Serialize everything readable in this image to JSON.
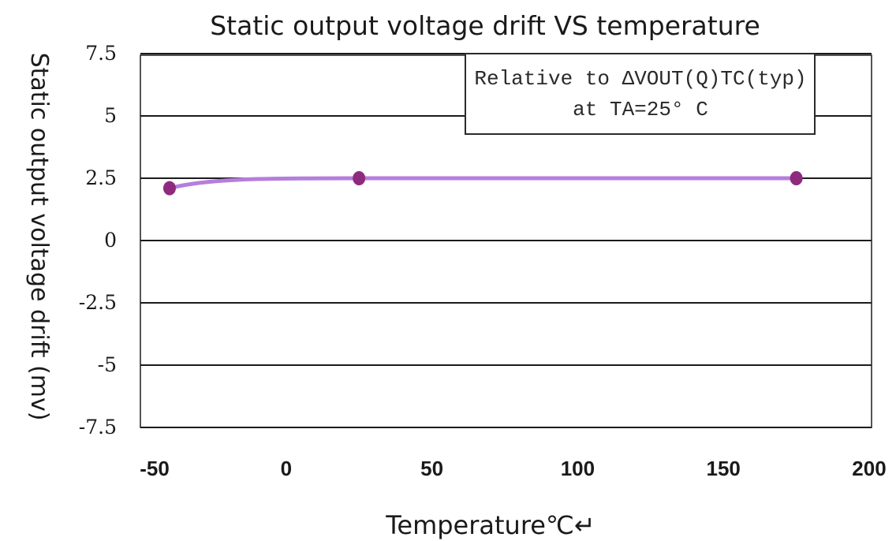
{
  "chart_data": {
    "type": "line",
    "title": "Static output voltage drift VS temperature",
    "xlabel": "Temperature℃↵",
    "ylabel": "Static output voltage drift (mv)",
    "xlim": [
      -50,
      200
    ],
    "ylim": [
      -7.5,
      7.5
    ],
    "x_ticks": [
      "-50",
      "0",
      "50",
      "100",
      "150",
      "200"
    ],
    "y_ticks": [
      "7.5",
      "5",
      "2.5",
      "0",
      "-2.5",
      "-5",
      "-7.5"
    ],
    "grid": true,
    "series": [
      {
        "color": "#b57edc",
        "marker_color": "#8e2b7e",
        "points": [
          {
            "x": -40,
            "y": 2.1
          },
          {
            "x": 25,
            "y": 2.5
          },
          {
            "x": 175,
            "y": 2.5
          }
        ]
      }
    ],
    "annotation": {
      "line1": "Relative to ΔVOUT(Q)TC(typ)",
      "line2": "at TA=25° C",
      "placement": "top-right"
    }
  }
}
